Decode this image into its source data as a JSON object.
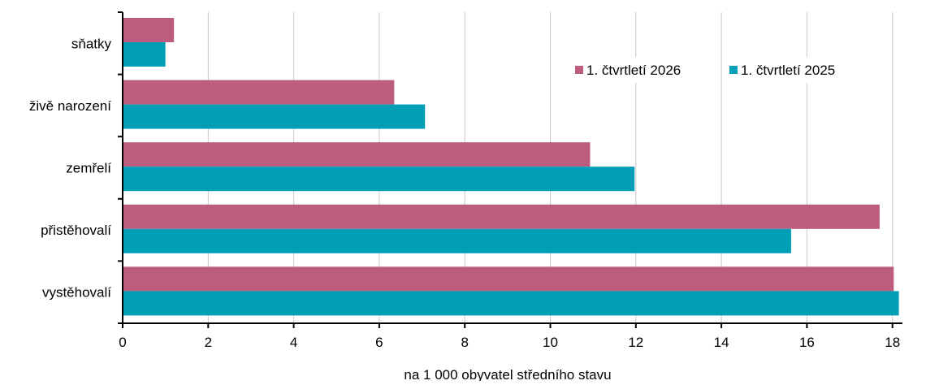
{
  "chart_data": {
    "type": "bar",
    "orientation": "horizontal",
    "categories": [
      "sňatky",
      "živě narození",
      "zemřelí",
      "přistěhovalí",
      "vystěhovalí"
    ],
    "series": [
      {
        "name": "1. čtvrtletí 2026",
        "color": "#bc5c7e",
        "values": [
          1.2,
          6.35,
          10.93,
          17.7,
          18.03
        ]
      },
      {
        "name": "1. čtvrtletí 2025",
        "color": "#009fb6",
        "values": [
          1.0,
          7.07,
          11.97,
          15.63,
          18.15
        ]
      }
    ],
    "x_ticks": [
      "0",
      "2",
      "4",
      "6",
      "8",
      "10",
      "12",
      "14",
      "16",
      "18"
    ],
    "xlim": [
      0,
      18.8
    ],
    "xlabel": "na 1 000 obyvatel středního stavu",
    "grid": "vertical",
    "legend_position": "top-right"
  }
}
